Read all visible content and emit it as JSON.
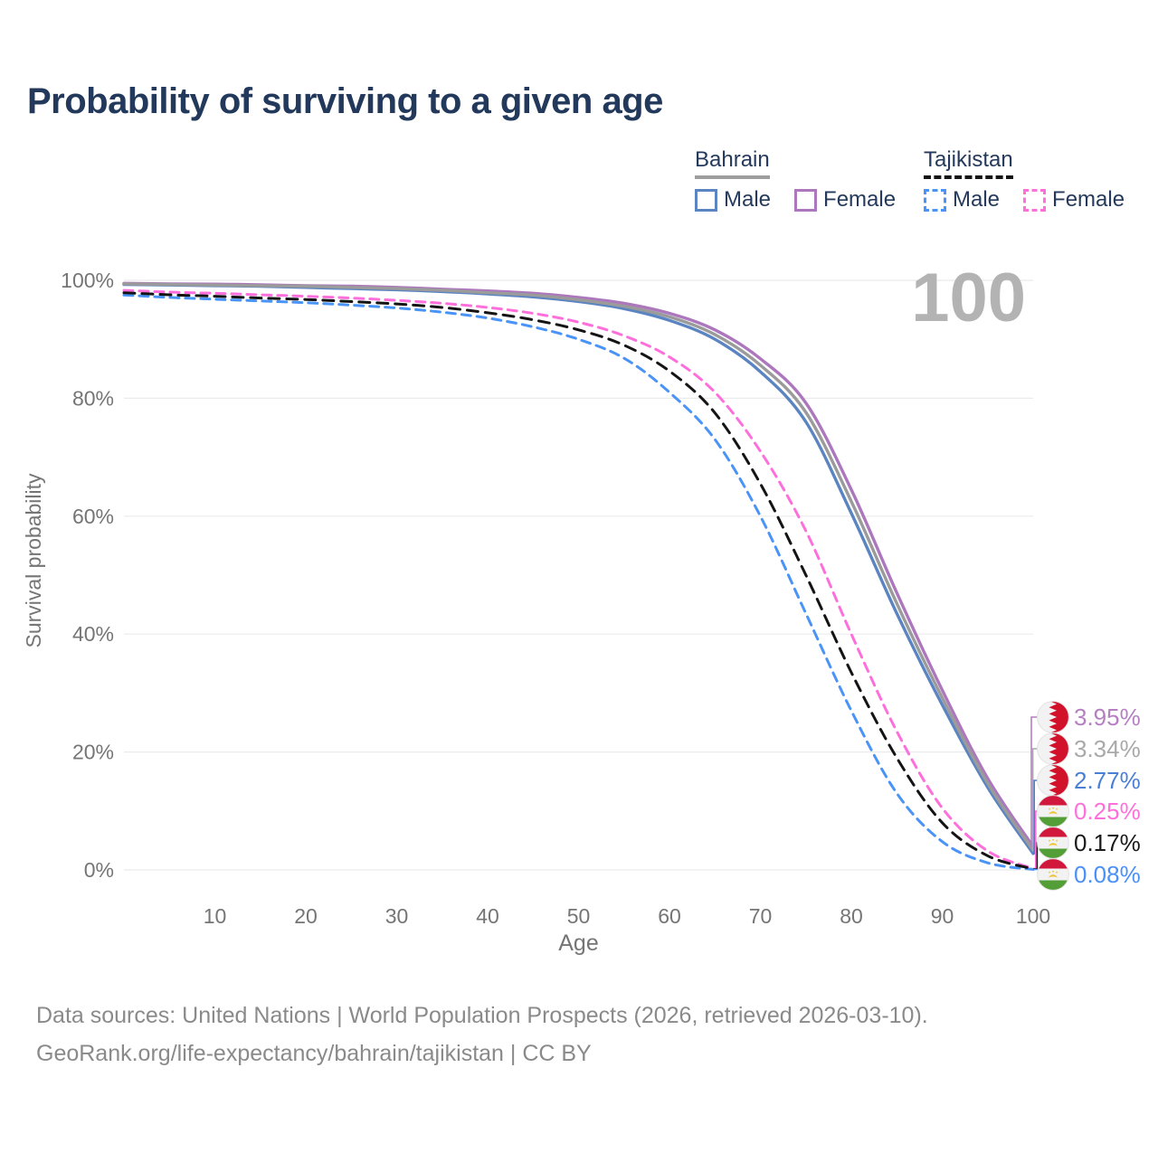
{
  "watermark": "100",
  "legend": {
    "groups": [
      {
        "name": "Bahrain",
        "style": "solid",
        "underline_color": "#9e9e9e",
        "items": [
          {
            "label": "Male",
            "color": "#5b84c2"
          },
          {
            "label": "Female",
            "color": "#ad77bd"
          }
        ]
      },
      {
        "name": "Tajikistan",
        "style": "dashed",
        "underline_color": "#141414",
        "items": [
          {
            "label": "Male",
            "color": "#4a93f7"
          },
          {
            "label": "Female",
            "color": "#ff6fdc"
          }
        ]
      }
    ]
  },
  "annotations": [
    {
      "flag": "bahrain",
      "series": "Bahrain Female",
      "label": "3.95%",
      "color": "#b57fc2"
    },
    {
      "flag": "bahrain",
      "series": "Bahrain (both sexes)",
      "label": "3.34%",
      "color": "#a9a9a9"
    },
    {
      "flag": "bahrain",
      "series": "Bahrain Male",
      "label": "2.77%",
      "color": "#4a7fd6"
    },
    {
      "flag": "tajikistan",
      "series": "Tajikistan Female",
      "label": "0.25%",
      "color": "#ff6fdc"
    },
    {
      "flag": "tajikistan",
      "series": "Tajikistan (both sexes)",
      "label": "0.17%",
      "color": "#1a1a1a"
    },
    {
      "flag": "tajikistan",
      "series": "Tajikistan Male",
      "label": "0.08%",
      "color": "#4a90fa"
    }
  ],
  "footer": {
    "line1": "Data sources: United Nations | World Population Prospects (2026, retrieved 2026-03-10).",
    "line2": "GeoRank.org/life-expectancy/bahrain/tajikistan | CC BY"
  },
  "chart_data": {
    "type": "line",
    "title": "Probability of surviving to a given age",
    "xlabel": "Age",
    "ylabel": "Survival probability",
    "xlim": [
      0,
      100
    ],
    "ylim": [
      0,
      100
    ],
    "x_ticks": [
      10,
      20,
      30,
      40,
      50,
      60,
      70,
      80,
      90,
      100
    ],
    "y_ticks": [
      0,
      20,
      40,
      60,
      80,
      100
    ],
    "y_tick_suffix": "%",
    "grid": "horizontal",
    "legend_position": "top-right",
    "ages": [
      0,
      5,
      10,
      15,
      20,
      25,
      30,
      35,
      40,
      45,
      50,
      55,
      60,
      65,
      70,
      75,
      80,
      85,
      90,
      95,
      100
    ],
    "series": [
      {
        "name": "Bahrain Male",
        "country": "Bahrain",
        "sex": "Male",
        "line_style": "solid",
        "color": "#5b84c2",
        "end_label": "2.77%",
        "values": [
          99.3,
          99.2,
          99.1,
          99.0,
          98.8,
          98.6,
          98.4,
          98.1,
          97.7,
          97.2,
          96.4,
          95.2,
          93.2,
          90.0,
          84.5,
          76.0,
          60.5,
          43.5,
          28.0,
          14.0,
          2.77
        ]
      },
      {
        "name": "Bahrain Female",
        "country": "Bahrain",
        "sex": "Female",
        "line_style": "solid",
        "color": "#ad77bd",
        "end_label": "3.95%",
        "values": [
          99.5,
          99.4,
          99.35,
          99.25,
          99.1,
          99.0,
          98.8,
          98.5,
          98.2,
          97.8,
          97.1,
          96.1,
          94.4,
          91.6,
          86.7,
          79.2,
          64.5,
          47.0,
          30.5,
          15.5,
          3.95
        ]
      },
      {
        "name": "Bahrain (both sexes)",
        "country": "Bahrain",
        "sex": "Both",
        "line_style": "solid",
        "color": "#9b9b9b",
        "end_label": "3.34%",
        "values": [
          99.4,
          99.3,
          99.2,
          99.1,
          99.0,
          98.8,
          98.6,
          98.3,
          97.9,
          97.5,
          96.7,
          95.6,
          93.8,
          90.8,
          85.6,
          77.6,
          62.5,
          45.2,
          29.2,
          14.7,
          3.34
        ]
      },
      {
        "name": "Tajikistan Male",
        "country": "Tajikistan",
        "sex": "Male",
        "line_style": "dashed",
        "color": "#4a93f7",
        "end_label": "0.08%",
        "values": [
          97.5,
          97.1,
          96.8,
          96.5,
          96.2,
          95.8,
          95.3,
          94.6,
          93.6,
          92.1,
          90.0,
          86.8,
          81.0,
          73.0,
          60.0,
          43.5,
          27.0,
          13.0,
          4.8,
          1.2,
          0.08
        ]
      },
      {
        "name": "Tajikistan Female",
        "country": "Tajikistan",
        "sex": "Female",
        "line_style": "dashed",
        "color": "#ff6fdc",
        "end_label": "0.25%",
        "values": [
          98.3,
          98.0,
          97.8,
          97.55,
          97.3,
          97.0,
          96.6,
          96.1,
          95.4,
          94.4,
          92.9,
          90.6,
          87.0,
          81.0,
          71.0,
          57.5,
          40.0,
          23.5,
          10.5,
          3.2,
          0.25
        ]
      },
      {
        "name": "Tajikistan (both sexes)",
        "country": "Tajikistan",
        "sex": "Both",
        "line_style": "dashed",
        "color": "#141414",
        "end_label": "0.17%",
        "values": [
          97.9,
          97.55,
          97.3,
          97.0,
          96.75,
          96.4,
          96.0,
          95.4,
          94.5,
          93.3,
          91.6,
          89.0,
          84.6,
          77.5,
          65.5,
          50.0,
          33.5,
          19.0,
          8.0,
          2.4,
          0.17
        ]
      }
    ]
  }
}
